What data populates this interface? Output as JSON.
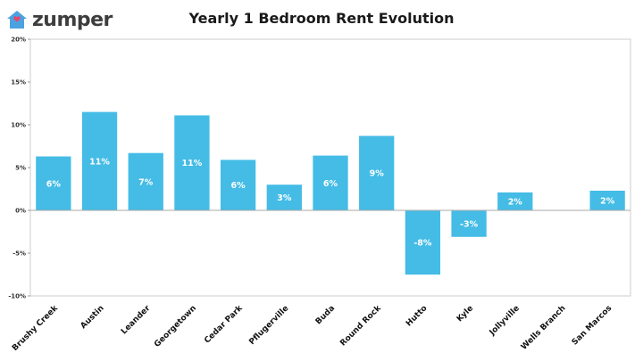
{
  "brand": {
    "name": "zumper",
    "logo_icon": "house-heart-icon",
    "logo_color": "#4aa3df",
    "heart_color": "#e8456b"
  },
  "chart_data": {
    "type": "bar",
    "title": "Yearly 1 Bedroom Rent Evolution",
    "xlabel": "",
    "ylabel": "",
    "ylim": [
      -10,
      20
    ],
    "yticks": [
      20,
      15,
      10,
      5,
      0,
      -5,
      -10
    ],
    "ytick_labels": [
      "20%",
      "15%",
      "10%",
      "5%",
      "0%",
      "-5%",
      "-10%"
    ],
    "grid": false,
    "bar_color": "#44bce6",
    "categories": [
      "Brushy Creek",
      "Austin",
      "Leander",
      "Georgetown",
      "Cedar Park",
      "Pflugerville",
      "Buda",
      "Round Rock",
      "Hutto",
      "Kyle",
      "Jollyville",
      "Wells Branch",
      "San Marcos"
    ],
    "values": [
      6.3,
      11.5,
      6.7,
      11.1,
      5.9,
      3.0,
      6.4,
      8.7,
      -7.5,
      -3.1,
      2.1,
      0,
      2.3
    ],
    "data_labels": [
      "6%",
      "11%",
      "7%",
      "11%",
      "6%",
      "3%",
      "6%",
      "9%",
      "-8%",
      "-3%",
      "2%",
      "",
      "2%"
    ]
  }
}
